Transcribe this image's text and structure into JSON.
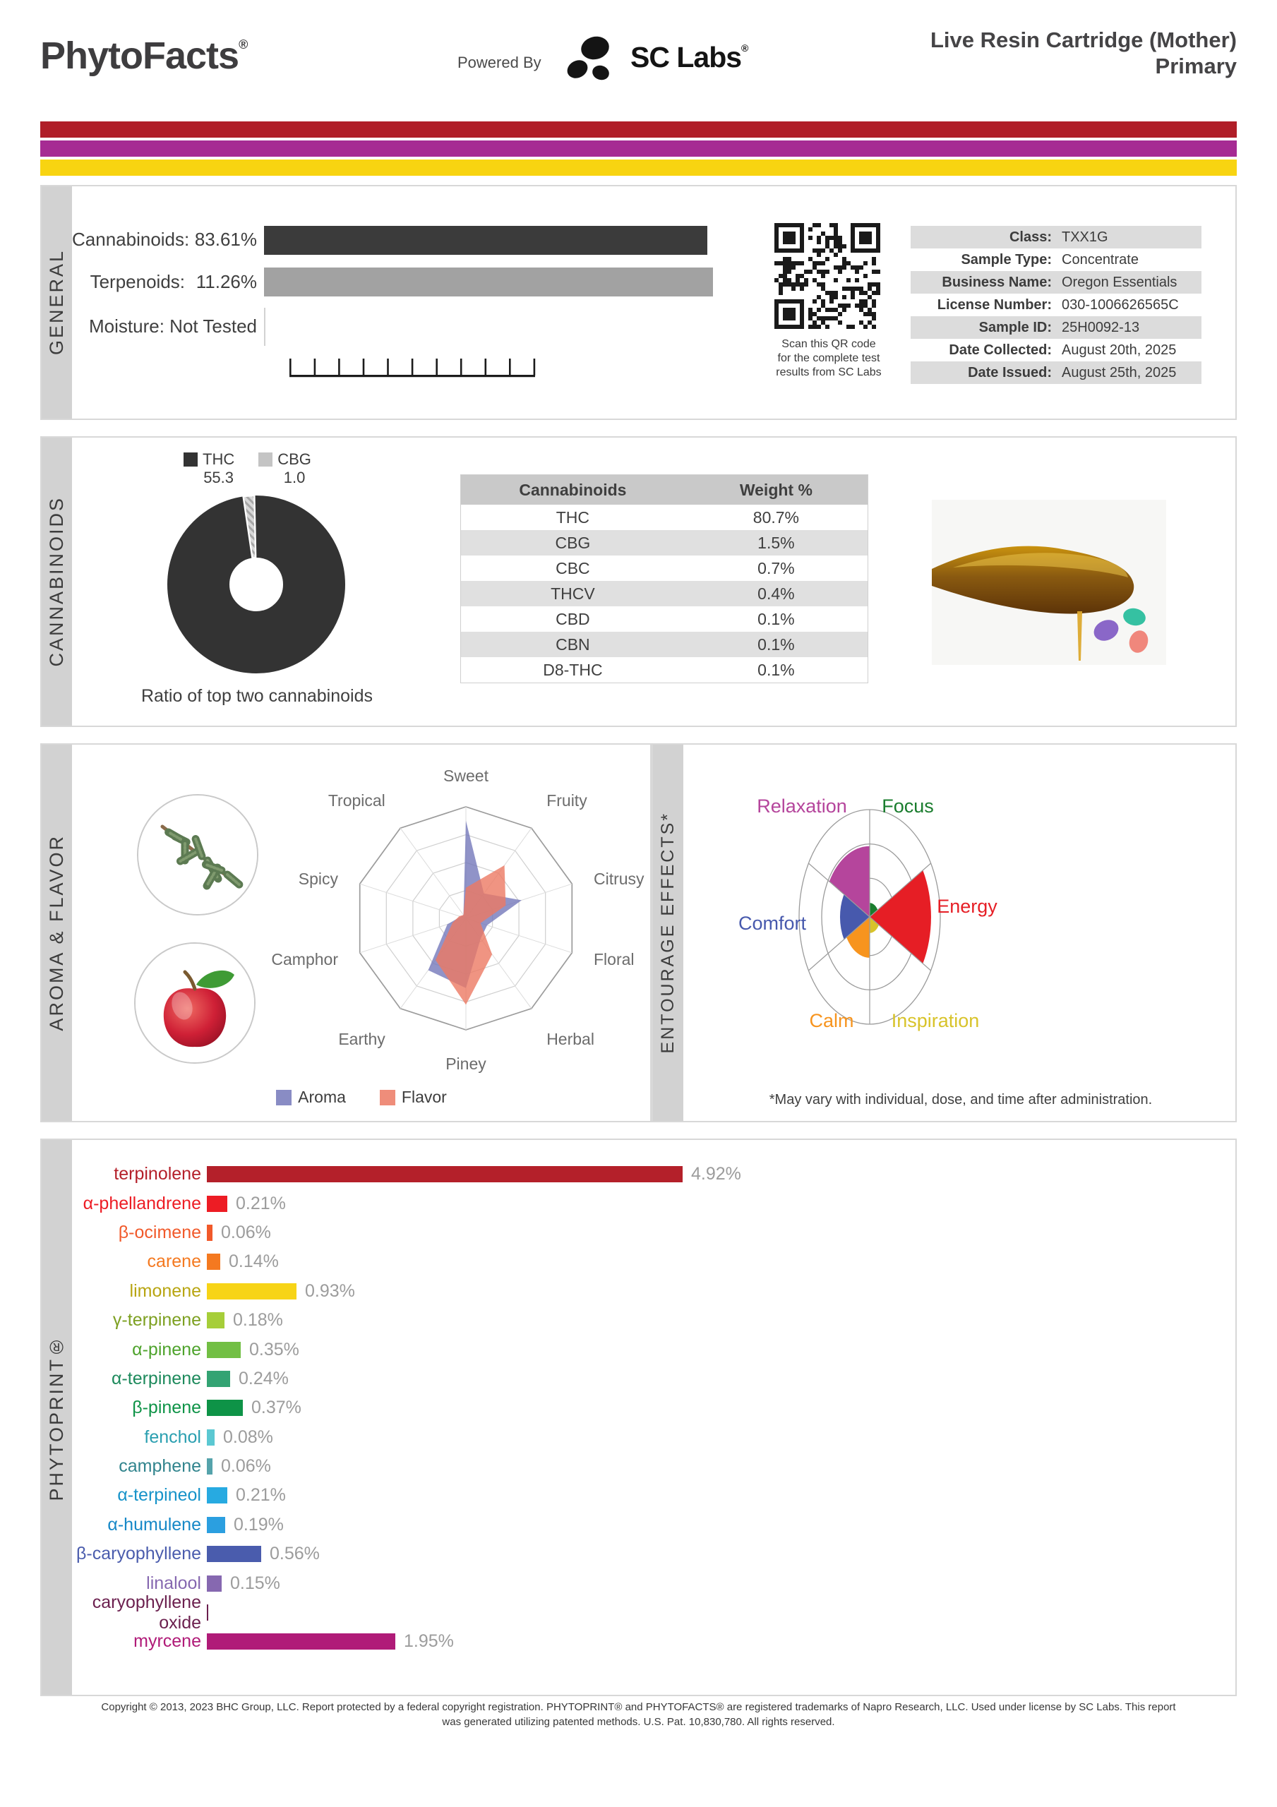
{
  "header": {
    "brand": "PhytoFacts",
    "brand_reg": "®",
    "powered_by": "Powered By",
    "lab_name": "SC Labs",
    "lab_reg": "®",
    "title_line1": "Live Resin Cartridge (Mother)",
    "title_line2": "Primary"
  },
  "accent_colors": [
    "#b01e28",
    "#a62b93",
    "#f8d411"
  ],
  "general": {
    "section_label": "GENERAL",
    "stats": [
      {
        "label": "Cannabinoids:",
        "value": "83.61%"
      },
      {
        "label": "Terpenoids:",
        "value": "11.26%"
      },
      {
        "label": "Moisture:",
        "value": "Not Tested"
      }
    ],
    "qr_caption": [
      "Scan this QR code",
      "for the complete test",
      "results from SC Labs"
    ],
    "info": [
      {
        "label": "Class:",
        "value": "TXX1G"
      },
      {
        "label": "Sample Type:",
        "value": "Concentrate"
      },
      {
        "label": "Business Name:",
        "value": "Oregon Essentials"
      },
      {
        "label": "License Number:",
        "value": "030-1006626565C"
      },
      {
        "label": "Sample ID:",
        "value": "25H0092-13"
      },
      {
        "label": "Date Collected:",
        "value": "August 20th, 2025"
      },
      {
        "label": "Date Issued:",
        "value": "August 25th, 2025"
      }
    ]
  },
  "cannabinoids": {
    "section_label": "CANNABINOIDS",
    "legend": [
      {
        "name": "THC",
        "value": "55.3",
        "color": "#333333"
      },
      {
        "name": "CBG",
        "value": "1.0",
        "color": "#c4c4c4"
      }
    ],
    "caption": "Ratio of top two cannabinoids",
    "table": {
      "headers": [
        "Cannabinoids",
        "Weight %"
      ],
      "rows": [
        [
          "THC",
          "80.7%"
        ],
        [
          "CBG",
          "1.5%"
        ],
        [
          "CBC",
          "0.7%"
        ],
        [
          "THCV",
          "0.4%"
        ],
        [
          "CBD",
          "0.1%"
        ],
        [
          "CBN",
          "0.1%"
        ],
        [
          "D8-THC",
          "0.1%"
        ]
      ]
    }
  },
  "aroma_flavor": {
    "section_label": "AROMA & FLAVOR",
    "axes": [
      "Sweet",
      "Fruity",
      "Citrusy",
      "Floral",
      "Herbal",
      "Piney",
      "Earthy",
      "Camphor",
      "Spicy",
      "Tropical"
    ],
    "max": 4,
    "series": [
      {
        "name": "Aroma",
        "color": "#7478ba",
        "values": [
          3.5,
          1.1,
          2.1,
          0.8,
          0.9,
          2.5,
          2.3,
          0.7,
          0.2,
          0.15
        ]
      },
      {
        "name": "Flavor",
        "color": "#ec7963",
        "values": [
          1.1,
          2.35,
          1.5,
          0.55,
          1.6,
          3.1,
          1.85,
          0.5,
          0.25,
          0.15
        ]
      }
    ]
  },
  "entourage": {
    "section_label": "ENTOURAGE EFFECTS*",
    "sectors": [
      {
        "name": "Focus",
        "color": "#1a7d2e",
        "value": 0.13
      },
      {
        "name": "Energy",
        "color": "#e61e25",
        "value": 0.87
      },
      {
        "name": "Inspiration",
        "color": "#d8c32a",
        "value": 0.15
      },
      {
        "name": "Calm",
        "color": "#f7941e",
        "value": 0.38
      },
      {
        "name": "Comfort",
        "color": "#4759ad",
        "value": 0.42
      },
      {
        "name": "Relaxation",
        "color": "#b5459c",
        "value": 0.66
      }
    ],
    "footnote": "*May vary with individual, dose, and time after administration."
  },
  "phytoprint": {
    "section_label": "PHYTOPRINT®",
    "terpenes": [
      {
        "name": "terpinolene",
        "color": "#b4202a",
        "value": 4.92,
        "value_label": "4.92%"
      },
      {
        "name": "α-phellandrene",
        "color": "#ed1c24",
        "value": 0.21,
        "value_label": "0.21%"
      },
      {
        "name": "β-ocimene",
        "color": "#f1592a",
        "value": 0.06,
        "value_label": "0.06%"
      },
      {
        "name": "carene",
        "color": "#f47920",
        "value": 0.14,
        "value_label": "0.14%"
      },
      {
        "name": "limonene",
        "color": "#f7d417",
        "label_color": "#b8a512",
        "value": 0.93,
        "value_label": "0.93%"
      },
      {
        "name": "γ-terpinene",
        "color": "#a6ce39",
        "label_color": "#7da021",
        "value": 0.18,
        "value_label": "0.18%"
      },
      {
        "name": "α-pinene",
        "color": "#72bf44",
        "label_color": "#4ea32c",
        "value": 0.35,
        "value_label": "0.35%"
      },
      {
        "name": "α-terpinene",
        "color": "#33a373",
        "label_color": "#1d8a5c",
        "value": 0.24,
        "value_label": "0.24%"
      },
      {
        "name": "β-pinene",
        "color": "#0e9347",
        "value": 0.37,
        "value_label": "0.37%"
      },
      {
        "name": "fenchol",
        "color": "#5bc8d2",
        "label_color": "#2a9fb0",
        "value": 0.08,
        "value_label": "0.08%"
      },
      {
        "name": "camphene",
        "color": "#55a3ab",
        "label_color": "#31848d",
        "value": 0.06,
        "value_label": "0.06%"
      },
      {
        "name": "α-terpineol",
        "color": "#27aae1",
        "label_color": "#1693c9",
        "value": 0.21,
        "value_label": "0.21%"
      },
      {
        "name": "α-humulene",
        "color": "#2b9fe0",
        "label_color": "#1688c7",
        "value": 0.19,
        "value_label": "0.19%"
      },
      {
        "name": "β-caryophyllene",
        "color": "#4a5cad",
        "value": 0.56,
        "value_label": "0.56%"
      },
      {
        "name": "linalool",
        "color": "#8668b0",
        "value": 0.15,
        "value_label": "0.15%"
      },
      {
        "name": "caryophyllene oxide",
        "color": "#6b1f4e",
        "value": 0.01,
        "value_label": ""
      },
      {
        "name": "myrcene",
        "color": "#b01b78",
        "value": 1.95,
        "value_label": "1.95%"
      }
    ]
  },
  "footer": {
    "line1": "Copyright © 2013, 2023 BHC Group, LLC. Report protected by a federal copyright registration. PHYTOPRINT® and PHYTOFACTS® are registered trademarks of Napro Research, LLC. Used under license by SC Labs. This report",
    "line2": "was generated utilizing patented methods. U.S. Pat. 10,830,780. All rights reserved."
  },
  "chart_data": [
    {
      "type": "pie",
      "title": "Ratio of top two cannabinoids",
      "categories": [
        "THC",
        "CBG"
      ],
      "values": [
        55.3,
        1.0
      ],
      "colors": [
        "#333333",
        "#c4c4c4"
      ],
      "note": "donut chart, CBG wedge hatched gray at top"
    },
    {
      "type": "table",
      "title": "Cannabinoids Weight %",
      "columns": [
        "Cannabinoids",
        "Weight %"
      ],
      "rows": [
        [
          "THC",
          80.7
        ],
        [
          "CBG",
          1.5
        ],
        [
          "CBC",
          0.7
        ],
        [
          "THCV",
          0.4
        ],
        [
          "CBD",
          0.1
        ],
        [
          "CBN",
          0.1
        ],
        [
          "D8-THC",
          0.1
        ]
      ]
    },
    {
      "type": "radar",
      "title": "Aroma & Flavor",
      "categories": [
        "Sweet",
        "Fruity",
        "Citrusy",
        "Floral",
        "Herbal",
        "Piney",
        "Earthy",
        "Camphor",
        "Spicy",
        "Tropical"
      ],
      "range": [
        0,
        4
      ],
      "series": [
        {
          "name": "Aroma",
          "values": [
            3.5,
            1.1,
            2.1,
            0.8,
            0.9,
            2.5,
            2.3,
            0.7,
            0.2,
            0.15
          ]
        },
        {
          "name": "Flavor",
          "values": [
            1.1,
            2.35,
            1.5,
            0.55,
            1.6,
            3.1,
            1.85,
            0.5,
            0.25,
            0.15
          ]
        }
      ],
      "legend_position": "bottom"
    },
    {
      "type": "polar-area",
      "title": "Entourage Effects",
      "categories": [
        "Focus",
        "Energy",
        "Inspiration",
        "Calm",
        "Comfort",
        "Relaxation"
      ],
      "values": [
        0.13,
        0.87,
        0.15,
        0.38,
        0.42,
        0.66
      ],
      "range": [
        0,
        1
      ]
    },
    {
      "type": "bar",
      "title": "PHYTOPRINT terpenoid profile",
      "orientation": "horizontal",
      "categories": [
        "terpinolene",
        "α-phellandrene",
        "β-ocimene",
        "carene",
        "limonene",
        "γ-terpinene",
        "α-pinene",
        "α-terpinene",
        "β-pinene",
        "fenchol",
        "camphene",
        "α-terpineol",
        "α-humulene",
        "β-caryophyllene",
        "linalool",
        "caryophyllene oxide",
        "myrcene"
      ],
      "values": [
        4.92,
        0.21,
        0.06,
        0.14,
        0.93,
        0.18,
        0.35,
        0.24,
        0.37,
        0.08,
        0.06,
        0.21,
        0.19,
        0.56,
        0.15,
        0.01,
        1.95
      ],
      "unit": "%"
    }
  ]
}
